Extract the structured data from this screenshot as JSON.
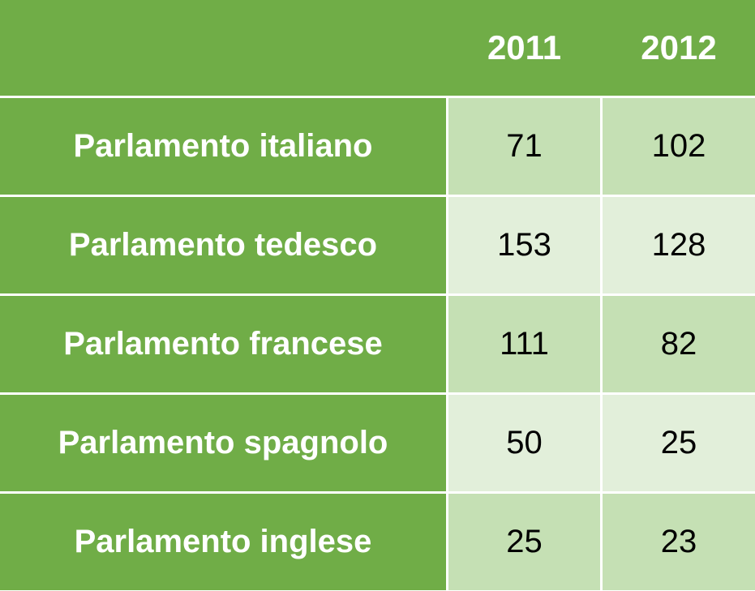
{
  "table": {
    "columns": [
      "2011",
      "2012"
    ],
    "rows": [
      {
        "label": "Parlamento italiano",
        "values": [
          71,
          102
        ]
      },
      {
        "label": "Parlamento tedesco",
        "values": [
          153,
          128
        ]
      },
      {
        "label": "Parlamento francese",
        "values": [
          111,
          82
        ]
      },
      {
        "label": "Parlamento spagnolo",
        "values": [
          50,
          25
        ]
      },
      {
        "label": "Parlamento inglese",
        "values": [
          25,
          23
        ]
      }
    ]
  }
}
